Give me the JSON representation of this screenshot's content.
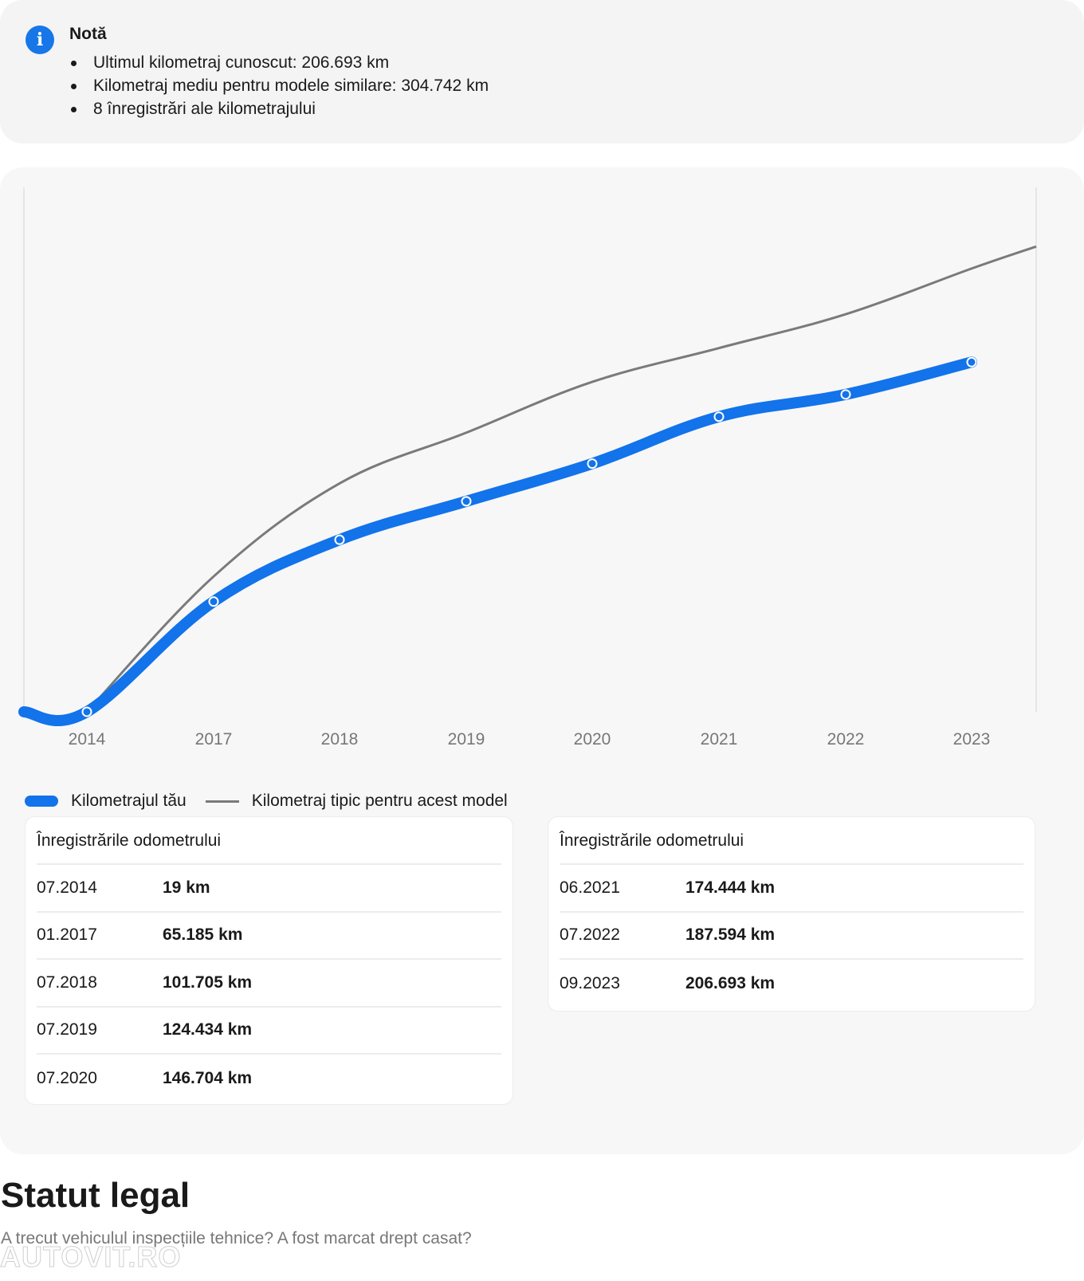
{
  "note": {
    "icon": "info-icon",
    "title": "Notă",
    "items": [
      "Ultimul kilometraj cunoscut: 206.693 km",
      "Kilometraj mediu pentru modele similare: 304.742 km",
      "8 înregistrări ale kilometrajului"
    ]
  },
  "colors": {
    "accent": "#1273ea",
    "typical_line": "#7a7a7a",
    "info": "#1777e8"
  },
  "chart_data": {
    "type": "line",
    "title": "",
    "xlabel": "",
    "ylabel": "",
    "x_ticks": [
      "2014",
      "2017",
      "2018",
      "2019",
      "2020",
      "2021",
      "2022",
      "2023"
    ],
    "ylim": [
      0,
      310000
    ],
    "grid": false,
    "legend_position": "bottom-left",
    "series": [
      {
        "name": "Kilometrajul tău",
        "color": "#1273ea",
        "x": [
          "07.2014",
          "01.2017",
          "07.2018",
          "07.2019",
          "07.2020",
          "06.2021",
          "07.2022",
          "09.2023"
        ],
        "y": [
          19,
          65185,
          101705,
          124434,
          146704,
          174444,
          187594,
          206693
        ]
      },
      {
        "name": "Kilometraj tipic pentru acest model",
        "color": "#7a7a7a",
        "x": [
          "07.2014",
          "01.2017",
          "07.2018",
          "07.2019",
          "07.2020",
          "06.2021",
          "07.2022",
          "09.2023",
          "2024"
        ],
        "y": [
          0,
          80000,
          135000,
          165000,
          195000,
          215000,
          235000,
          262000,
          275000
        ]
      }
    ]
  },
  "legend": {
    "yours": "Kilometrajul tău",
    "typical": "Kilometraj tipic pentru acest model"
  },
  "tables": [
    {
      "title": "Înregistrările odometrului",
      "rows": [
        {
          "date": "07.2014",
          "km": "19 km"
        },
        {
          "date": "01.2017",
          "km": "65.185 km"
        },
        {
          "date": "07.2018",
          "km": "101.705 km"
        },
        {
          "date": "07.2019",
          "km": "124.434 km"
        },
        {
          "date": "07.2020",
          "km": "146.704 km"
        }
      ]
    },
    {
      "title": "Înregistrările odometrului",
      "rows": [
        {
          "date": "06.2021",
          "km": "174.444 km"
        },
        {
          "date": "07.2022",
          "km": "187.594 km"
        },
        {
          "date": "09.2023",
          "km": "206.693 km"
        }
      ]
    }
  ],
  "legal": {
    "title": "Statut legal",
    "subtitle": "A trecut vehiculul inspecțiile tehnice? A fost marcat drept casat?"
  },
  "watermark": "AUTOVIT.RO"
}
